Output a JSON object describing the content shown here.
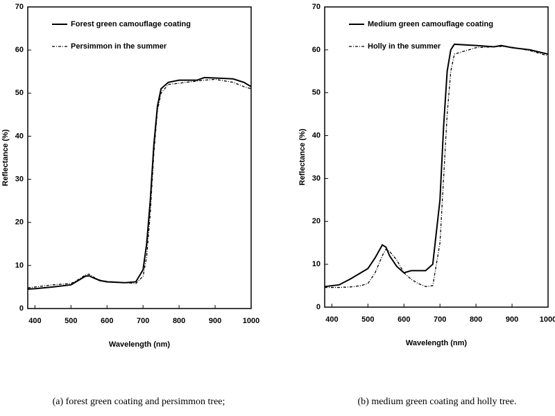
{
  "chart_data": [
    {
      "type": "line",
      "x_label": "Wavelength (nm)",
      "y_label": "Reflectance (%)",
      "caption": "(a) forest green coating and persimmon tree;",
      "x": [
        380,
        400,
        450,
        500,
        520,
        540,
        550,
        560,
        580,
        600,
        650,
        680,
        700,
        710,
        720,
        730,
        740,
        750,
        770,
        800,
        850,
        870,
        900,
        950,
        980,
        1000
      ],
      "series": [
        {
          "name": "Forest green camouflage coating",
          "color": "#000000",
          "style": "solid",
          "values": [
            4.5,
            4.6,
            5,
            5.5,
            6.5,
            7.5,
            7.6,
            7.2,
            6.5,
            6.2,
            6,
            6.2,
            9,
            15,
            25,
            38,
            47,
            51,
            52.5,
            53,
            53,
            53.6,
            53.5,
            53.3,
            52.5,
            51.5
          ]
        },
        {
          "name": "Persimmon in the summer",
          "color": "#000000",
          "style": "dashed",
          "values": [
            4.8,
            5,
            5.5,
            5.8,
            6.7,
            7.8,
            8,
            7.4,
            6.6,
            6.3,
            6,
            5.8,
            7.5,
            12,
            22,
            36,
            46,
            50,
            52,
            52.3,
            52.8,
            53,
            53.2,
            52.5,
            51.5,
            51
          ]
        }
      ],
      "xlim": [
        380,
        1000
      ],
      "xticks": [
        400,
        500,
        600,
        700,
        800,
        900,
        1000
      ],
      "ylim": [
        0,
        70
      ],
      "yticks": [
        0,
        10,
        20,
        30,
        40,
        50,
        60,
        70
      ],
      "legend": "upper-left"
    },
    {
      "type": "line",
      "x_label": "Wavelength (nm)",
      "y_label": "Reflectance (%)",
      "caption": "(b) medium green coating and holly tree.",
      "x": [
        380,
        420,
        450,
        480,
        500,
        520,
        540,
        550,
        560,
        580,
        600,
        620,
        640,
        660,
        680,
        700,
        710,
        720,
        730,
        740,
        800,
        850,
        870,
        900,
        950,
        1000
      ],
      "series": [
        {
          "name": "Medium green camouflage coating",
          "color": "#000000",
          "style": "solid",
          "values": [
            4.8,
            5.2,
            6.5,
            8,
            9,
            11.5,
            14.5,
            14,
            12,
            9.5,
            8,
            8.5,
            8.5,
            8.5,
            10,
            25,
            42,
            55,
            60,
            61.3,
            61,
            60.7,
            61,
            60.5,
            60,
            59
          ]
        },
        {
          "name": "Holly in the summer",
          "color": "#000000",
          "style": "dashed",
          "values": [
            4.6,
            4.6,
            4.7,
            5,
            5.5,
            8,
            12,
            13.5,
            13,
            11,
            8,
            6.5,
            5.5,
            4.8,
            5,
            15,
            30,
            45,
            55,
            59,
            60.5,
            60.7,
            60.8,
            60.6,
            59.8,
            58.6
          ]
        }
      ],
      "xlim": [
        380,
        1000
      ],
      "xticks": [
        400,
        500,
        600,
        700,
        800,
        900,
        1000
      ],
      "ylim": [
        0,
        70
      ],
      "yticks": [
        0,
        10,
        20,
        30,
        40,
        50,
        60,
        70
      ],
      "legend": "upper-left"
    }
  ]
}
